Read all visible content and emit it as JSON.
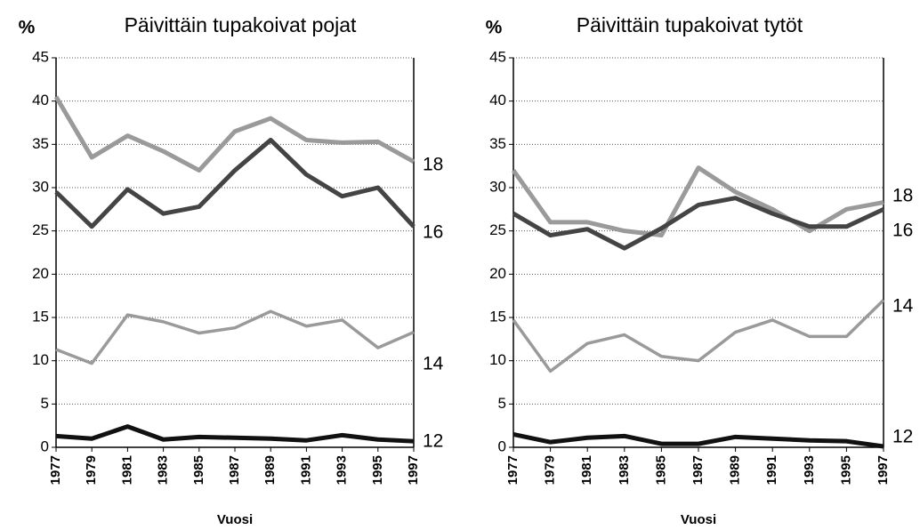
{
  "chart_data": [
    {
      "type": "line",
      "title": "Päivittäin tupakoivat pojat",
      "ylabel": "%",
      "xlabel": "Vuosi",
      "categories": [
        "1977",
        "1979",
        "1981",
        "1983",
        "1985",
        "1987",
        "1989",
        "1991",
        "1993",
        "1995",
        "1997"
      ],
      "ylim": [
        0,
        45
      ],
      "yticks": [
        0,
        5,
        10,
        15,
        20,
        25,
        30,
        35,
        40,
        45
      ],
      "grid": true,
      "series": [
        {
          "name": "18",
          "color": "#9a9a9a",
          "values": [
            40.5,
            33.5,
            36,
            34.2,
            32,
            36.5,
            38,
            35.5,
            35.2,
            35.3,
            33
          ]
        },
        {
          "name": "16",
          "color": "#444444",
          "values": [
            29.5,
            25.5,
            29.8,
            27,
            27.8,
            32,
            35.5,
            31.5,
            29,
            30,
            25.5
          ]
        },
        {
          "name": "14",
          "color": "#9a9a9a",
          "values": [
            11.3,
            9.7,
            15.3,
            14.5,
            13.2,
            13.8,
            15.7,
            14,
            14.7,
            11.5,
            13.3
          ]
        },
        {
          "name": "12",
          "color": "#111111",
          "values": [
            1.3,
            1,
            2.4,
            0.9,
            1.2,
            1.1,
            1,
            0.8,
            1.4,
            0.9,
            0.7
          ]
        }
      ]
    },
    {
      "type": "line",
      "title": "Päivittäin tupakoivat tytöt",
      "ylabel": "%",
      "xlabel": "Vuosi",
      "categories": [
        "1977",
        "1979",
        "1981",
        "1983",
        "1985",
        "1987",
        "1989",
        "1991",
        "1993",
        "1995",
        "1997"
      ],
      "ylim": [
        0,
        45
      ],
      "yticks": [
        0,
        5,
        10,
        15,
        20,
        25,
        30,
        35,
        40,
        45
      ],
      "grid": true,
      "series": [
        {
          "name": "18",
          "color": "#9a9a9a",
          "values": [
            32,
            26,
            26,
            25,
            24.5,
            32.3,
            29.5,
            27.5,
            25,
            27.5,
            28.3
          ]
        },
        {
          "name": "16",
          "color": "#444444",
          "values": [
            27,
            24.5,
            25.2,
            23,
            25.3,
            28,
            28.8,
            27,
            25.5,
            25.5,
            27.5
          ]
        },
        {
          "name": "14",
          "color": "#9a9a9a",
          "values": [
            14.7,
            8.8,
            12,
            13,
            10.5,
            10,
            13.3,
            14.7,
            12.8,
            12.8,
            17
          ]
        },
        {
          "name": "12",
          "color": "#111111",
          "values": [
            1.5,
            0.6,
            1.1,
            1.3,
            0.4,
            0.4,
            1.2,
            1,
            0.8,
            0.7,
            0.1
          ]
        }
      ]
    }
  ]
}
